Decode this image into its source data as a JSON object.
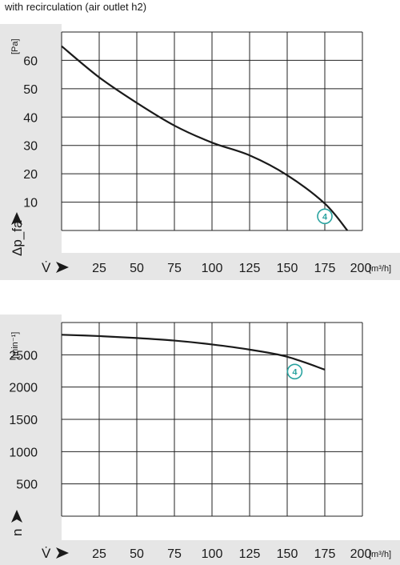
{
  "title": "with recirculation (air outlet h2)",
  "colors": {
    "band": "#e6e6e6",
    "grid": "#222222",
    "curve": "#1a1a1a",
    "marker": "#2aa3a0"
  },
  "chart_data": [
    {
      "type": "line",
      "xlabel": "V̇",
      "x_unit": "[m³/h]",
      "ylabel": "Δp_fa",
      "y_unit": "[Pa]",
      "xlim": [
        0,
        200
      ],
      "ylim": [
        0,
        70
      ],
      "x_ticks": [
        "25",
        "50",
        "75",
        "100",
        "125",
        "150",
        "175",
        "200"
      ],
      "y_ticks": [
        "10",
        "20",
        "30",
        "40",
        "50",
        "60"
      ],
      "grid": true,
      "series": [
        {
          "name": "4",
          "x": [
            0,
            25,
            50,
            75,
            100,
            125,
            150,
            175,
            190
          ],
          "y": [
            65,
            54,
            45,
            37,
            31,
            26.5,
            19.5,
            9.5,
            0
          ]
        }
      ],
      "marker_label": {
        "text": "4",
        "x": 175,
        "y": 5
      }
    },
    {
      "type": "line",
      "xlabel": "V̇",
      "x_unit": "[m³/h]",
      "ylabel": "n",
      "y_unit": "[min⁻¹]",
      "xlim": [
        0,
        200
      ],
      "ylim": [
        0,
        3000
      ],
      "x_ticks": [
        "25",
        "50",
        "75",
        "100",
        "125",
        "150",
        "175",
        "200"
      ],
      "y_ticks": [
        "500",
        "1000",
        "1500",
        "2000",
        "2500"
      ],
      "grid": true,
      "series": [
        {
          "name": "4",
          "x": [
            0,
            25,
            50,
            75,
            100,
            125,
            150,
            175
          ],
          "y": [
            2810,
            2790,
            2760,
            2720,
            2660,
            2580,
            2470,
            2270
          ]
        }
      ],
      "marker_label": {
        "text": "4",
        "x": 155,
        "y": 2240
      }
    }
  ]
}
